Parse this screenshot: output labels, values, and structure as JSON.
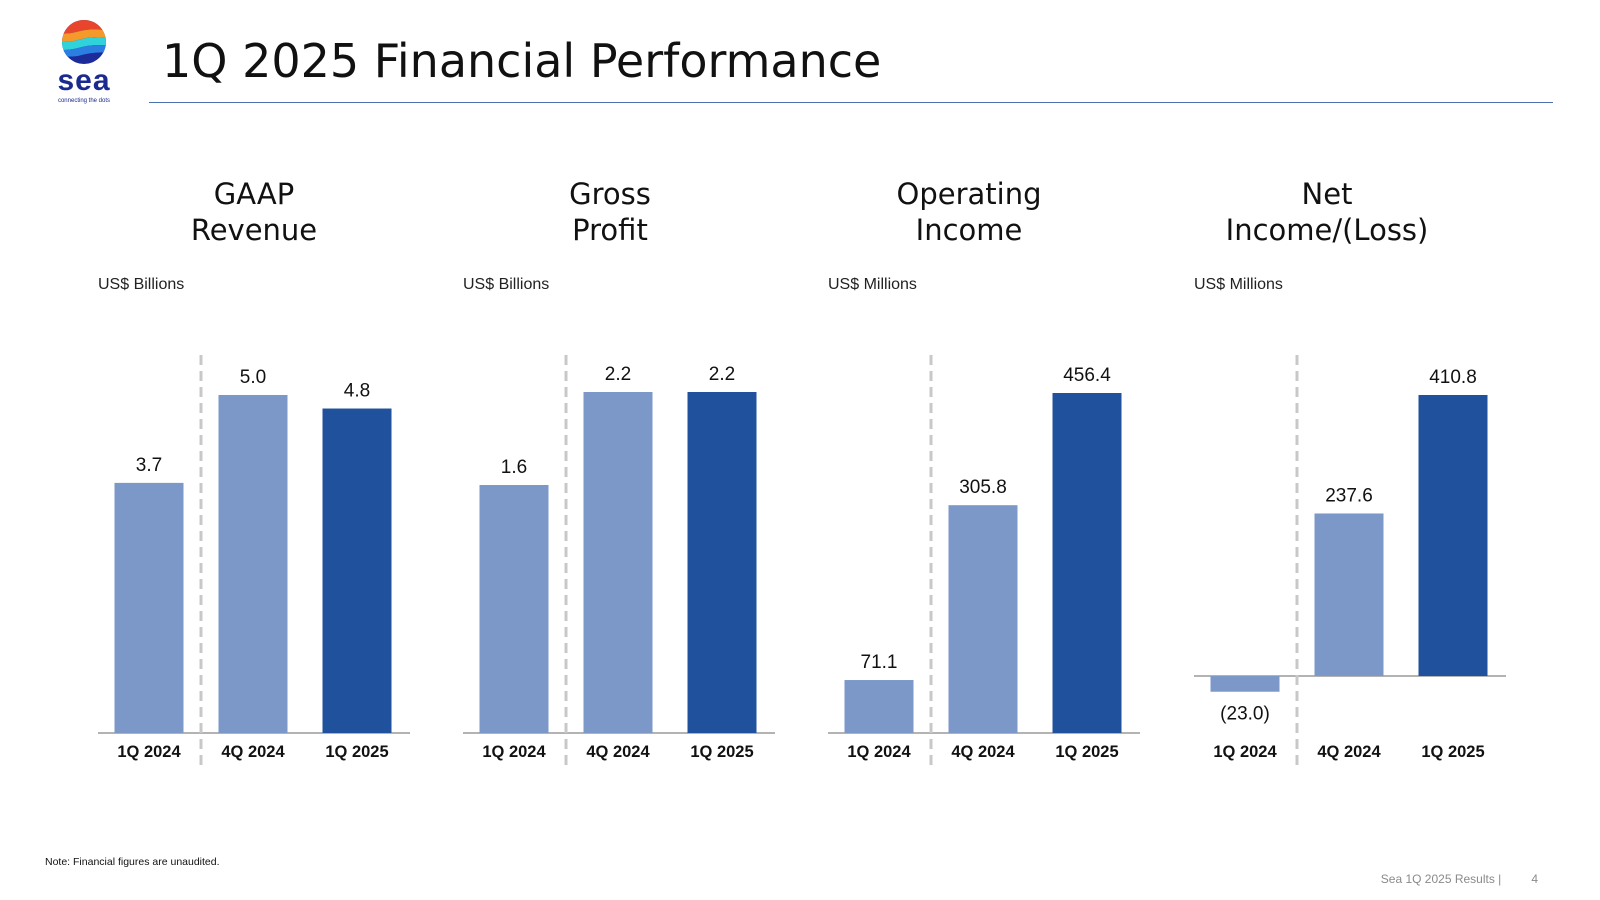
{
  "logo": {
    "word": "sea",
    "tagline": "connecting the dots"
  },
  "title": "1Q 2025 Financial Performance",
  "note": "Note: Financial figures are unaudited.",
  "footer": {
    "text": "Sea 1Q 2025 Results |",
    "page": "4"
  },
  "colors": {
    "light_bar": "#7b98c8",
    "dark_bar": "#20519c",
    "divider": "#c8c8c8",
    "axis": "#9a9a9a"
  },
  "chart_data": [
    {
      "type": "bar",
      "title_lines": [
        "GAAP",
        "Revenue"
      ],
      "ylabel": "US$ Billions",
      "categories": [
        "1Q 2024",
        "4Q 2024",
        "1Q 2025"
      ],
      "values": [
        3.7,
        5.0,
        4.8
      ],
      "value_labels": [
        "3.7",
        "5.0",
        "4.8"
      ],
      "ylim": [
        0,
        5.0
      ]
    },
    {
      "type": "bar",
      "title_lines": [
        "Gross",
        "Profit"
      ],
      "ylabel": "US$ Billions",
      "categories": [
        "1Q 2024",
        "4Q 2024",
        "1Q 2025"
      ],
      "values": [
        1.6,
        2.2,
        2.2
      ],
      "value_labels": [
        "1.6",
        "2.2",
        "2.2"
      ],
      "ylim": [
        0,
        2.2
      ]
    },
    {
      "type": "bar",
      "title_lines": [
        "Operating",
        "Income"
      ],
      "ylabel": "US$ Millions",
      "categories": [
        "1Q 2024",
        "4Q 2024",
        "1Q 2025"
      ],
      "values": [
        71.1,
        305.8,
        456.4
      ],
      "value_labels": [
        "71.1",
        "305.8",
        "456.4"
      ],
      "ylim": [
        0,
        456.4
      ]
    },
    {
      "type": "bar",
      "title_lines": [
        "Net",
        "Income/(Loss)"
      ],
      "ylabel": "US$ Millions",
      "categories": [
        "1Q 2024",
        "4Q 2024",
        "1Q 2025"
      ],
      "values": [
        -23.0,
        237.6,
        410.8
      ],
      "value_labels": [
        "(23.0)",
        "237.6",
        "410.8"
      ],
      "ylim": [
        -23.0,
        410.8
      ]
    }
  ]
}
